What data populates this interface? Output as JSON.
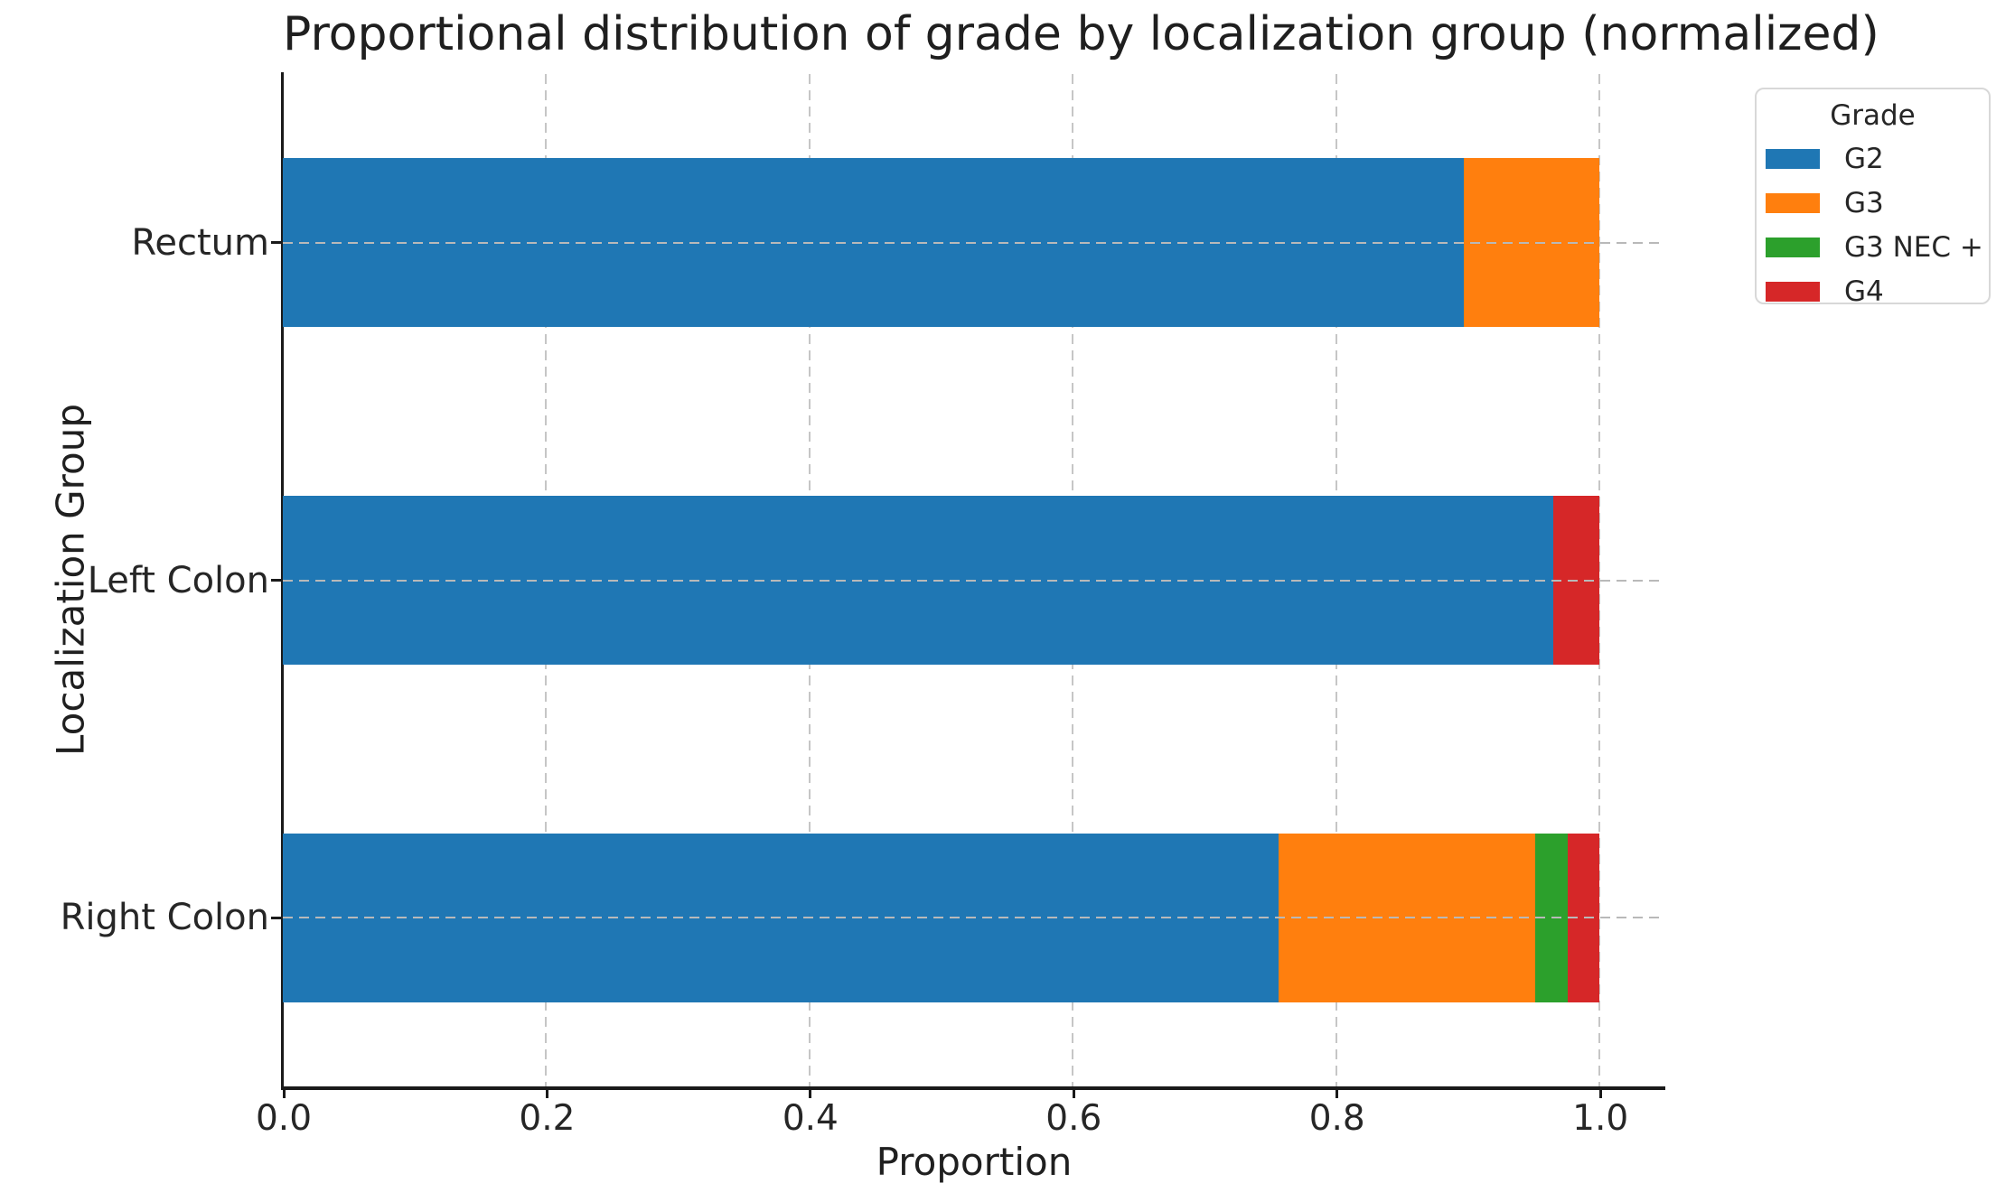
{
  "chart_data": {
    "type": "bar",
    "orientation": "horizontal",
    "stacked": true,
    "normalized": true,
    "title": "Proportional distribution of grade by localization group (normalized)",
    "xlabel": "Proportion",
    "ylabel": "Localization Group",
    "categories": [
      "Rectum",
      "Left Colon",
      "Right Colon"
    ],
    "series": [
      {
        "name": "G2",
        "color": "#1f77b4",
        "values": [
          0.897,
          0.965,
          0.756
        ]
      },
      {
        "name": "G3",
        "color": "#ff7f0e",
        "values": [
          0.103,
          0.0,
          0.195
        ]
      },
      {
        "name": "G3 NEC +",
        "color": "#2ca02c",
        "values": [
          0.0,
          0.0,
          0.025
        ]
      },
      {
        "name": "G4",
        "color": "#d62728",
        "values": [
          0.0,
          0.035,
          0.024
        ]
      }
    ],
    "x_ticks": [
      "0.0",
      "0.2",
      "0.4",
      "0.6",
      "0.8",
      "1.0"
    ],
    "x_tick_values": [
      0.0,
      0.2,
      0.4,
      0.6,
      0.8,
      1.0
    ],
    "xlim": [
      0,
      1.05
    ],
    "grid": "dashed",
    "legend": {
      "title": "Grade",
      "position": "upper-right-outside"
    }
  }
}
